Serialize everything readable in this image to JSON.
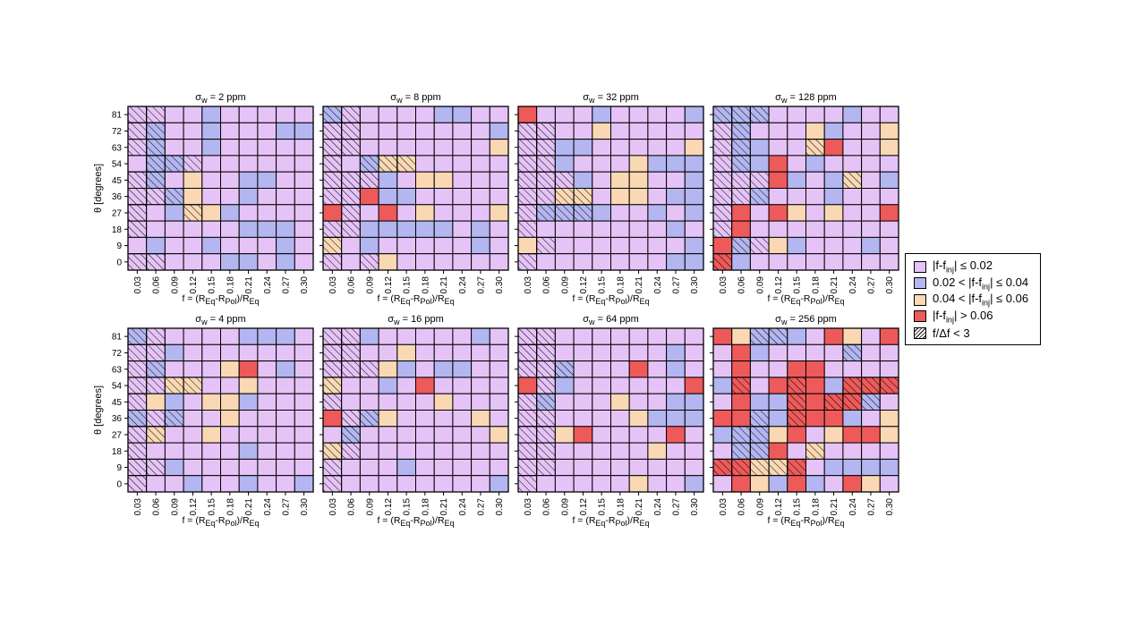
{
  "chart_data": {
    "type": "heatmap",
    "xlabel_html": "f = (R<sub>Eq</sub>-R<sub>Pol</sub>)/R<sub>Eq</sub>",
    "ylabel": "θ [degrees]",
    "x_ticks": [
      "0.03",
      "0.06",
      "0.09",
      "0.12",
      "0.15",
      "0.18",
      "0.21",
      "0.24",
      "0.27",
      "0.30"
    ],
    "y_ticks": [
      "81",
      "72",
      "63",
      "54",
      "45",
      "36",
      "27",
      "18",
      "9",
      "0"
    ],
    "colors": {
      "1": "#e6c3f7",
      "2": "#b3b6f0",
      "3": "#fad8b4",
      "4": "#ee5a5a"
    },
    "legend": [
      {
        "color": "#e6c3f7",
        "html": "|f-f<sub>inj</sub>| ≤ 0.02"
      },
      {
        "color": "#b3b6f0",
        "html": "0.02 &lt; |f-f<sub>inj</sub>| ≤ 0.04"
      },
      {
        "color": "#fad8b4",
        "html": "0.04 &lt; |f-f<sub>inj</sub>| ≤ 0.06"
      },
      {
        "color": "#ee5a5a",
        "html": "|f-f<sub>inj</sub>| &gt; 0.06"
      },
      {
        "hatch": true,
        "html": "f/Δf &lt; 3"
      }
    ],
    "panels": [
      {
        "label": "σ_w = 2 ppm",
        "title_html": "σ<sub>w</sub> = 2 ppm",
        "grid": [
          "1111211111",
          "1211211122",
          "1211211111",
          "1221111111",
          "1213112211",
          "1123112111",
          "1123321111",
          "1111112221",
          "1211211121",
          "1111122121"
        ],
        "hatch": [
          "1100000000",
          "1100000000",
          "1100000000",
          "0111000000",
          "1100000000",
          "1110000000",
          "1001000000",
          "1000000000",
          "0000000000",
          "1100000000"
        ]
      },
      {
        "label": "σ_w = 8 ppm",
        "title_html": "σ<sub>w</sub> = 8 ppm",
        "grid": [
          "2111112211",
          "1111111112",
          "1111111113",
          "1123311111",
          "1112133111",
          "1142211111",
          "4114131113",
          "1122222121",
          "3121111121",
          "1113111111"
        ],
        "hatch": [
          "1100000000",
          "1100000000",
          "1100000000",
          "1011100000",
          "1110000000",
          "1100000000",
          "0100000000",
          "1100000000",
          "1000000000",
          "1010000000"
        ]
      },
      {
        "label": "σ_w = 32 ppm",
        "title_html": "σ<sub>w</sub> = 32 ppm",
        "grid": [
          "4111211112",
          "1111311111",
          "1122111113",
          "1121113222",
          "1112133112",
          "1133133122",
          "1222211212",
          "1111111121",
          "3111111112",
          "1111111122"
        ],
        "hatch": [
          "0000000000",
          "1100000000",
          "1100000000",
          "1100000000",
          "1110000000",
          "1111000000",
          "1111000000",
          "1000000000",
          "0100000000",
          "1000000000"
        ]
      },
      {
        "label": "σ_w = 128 ppm",
        "title_html": "σ<sub>w</sub> = 128 ppm",
        "grid": [
          "2221111211",
          "1211132113",
          "1221134113",
          "1224121111",
          "1114212312",
          "1121112111",
          "1414313114",
          "1411111111",
          "4213211121",
          "4211111111"
        ],
        "hatch": [
          "1110000000",
          "1100000000",
          "1100010000",
          "1100000000",
          "1110000100",
          "1110000000",
          "1000000000",
          "1000000000",
          "0110000000",
          "1000000000"
        ]
      },
      {
        "label": "σ_w = 4 ppm",
        "title_html": "σ<sub>w</sub> = 4 ppm",
        "grid": [
          "2111112221",
          "1121111111",
          "1211134121",
          "1133113111",
          "1321332111",
          "2121131111",
          "1311311111",
          "1111112111",
          "1121111111",
          "1112112112"
        ],
        "hatch": [
          "1100000000",
          "1100000000",
          "1100000000",
          "1111000000",
          "1000000000",
          "1110000000",
          "1100000000",
          "1000000000",
          "1100000000",
          "1000000000"
        ]
      },
      {
        "label": "σ_w = 16 ppm",
        "title_html": "σ<sub>w</sub> = 16 ppm",
        "grid": [
          "1121111121",
          "1111311111",
          "1113212211",
          "3112141111",
          "1111113111",
          "4123111131",
          "1211111113",
          "3111111111",
          "1111211111",
          "1111111112"
        ],
        "hatch": [
          "1100000000",
          "1100000000",
          "1110000000",
          "1000000000",
          "1000000000",
          "0110000000",
          "0100000000",
          "1100000000",
          "1000000000",
          "1000000000"
        ]
      },
      {
        "label": "σ_w = 64 ppm",
        "title_html": "σ<sub>w</sub> = 64 ppm",
        "grid": [
          "1111111111",
          "1111111121",
          "1121114121",
          "4121111114",
          "1211131122",
          "1111113222",
          "1134111141",
          "1111111311",
          "1111111111",
          "1111113112"
        ],
        "hatch": [
          "1100000000",
          "1100000000",
          "1110000000",
          "0100000000",
          "1100000000",
          "1100000000",
          "1100000000",
          "1100000000",
          "1100000000",
          "1000000000"
        ]
      },
      {
        "label": "σ_w = 256 ppm",
        "title_html": "σ<sub>w</sub> = 256 ppm",
        "grid": [
          "4322214314",
          "1421111211",
          "1411441111",
          "2414442444",
          "1422444421",
          "4422444213",
          "2223413443",
          "1224131111",
          "4433412222",
          "1432421431"
        ],
        "hatch": [
          "0011000000",
          "0000000100",
          "0000000000",
          "0100100111",
          "0000101110",
          "0010100000",
          "0110000000",
          "0110010000",
          "1111100000",
          "0000000000"
        ]
      }
    ]
  }
}
